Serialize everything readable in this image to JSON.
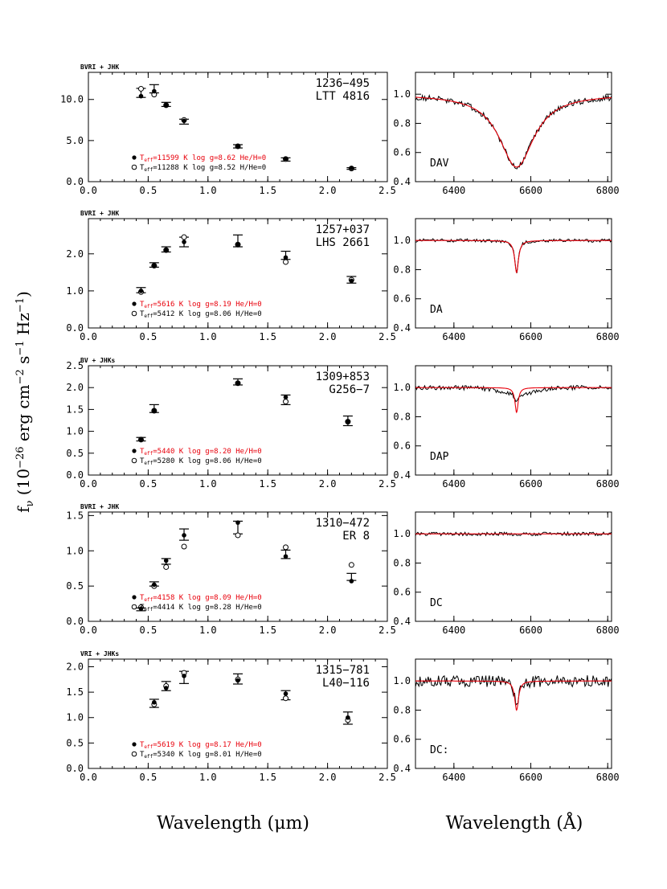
{
  "y_axis_label": "f_ν (10^-26 erg cm^-2 s^-1 Hz^-1)",
  "x_axis_label_sed": "Wavelength (μm)",
  "x_axis_label_spectrum": "Wavelength (Å)",
  "legend_labels": {
    "teff": "T",
    "teff_sub": "eff"
  },
  "colors": {
    "model_hydrogen": "#e8000b",
    "data": "#000000"
  },
  "chart_data": [
    {
      "type": "scatter",
      "photometry": "BVRI + JHK",
      "star_id": "1236−495",
      "star_name": "LTT 4816",
      "xlim": [
        0,
        2.5
      ],
      "ylim": [
        0,
        13.3
      ],
      "xticks": [
        "0.0",
        "0.5",
        "1.0",
        "1.5",
        "2.0",
        "2.5"
      ],
      "yticks": [
        "0.0",
        "5.0",
        "10.0"
      ],
      "ytick_values": [
        0,
        5,
        10
      ],
      "legend": [
        {
          "marker": "filled",
          "color": "#e8000b",
          "text": "=11599 K  log g=8.62  He/H=0"
        },
        {
          "marker": "open",
          "color": "#000000",
          "text": "=11288 K  log g=8.52  H/He=0"
        }
      ],
      "x": [
        0.44,
        0.55,
        0.65,
        0.8,
        1.25,
        1.65,
        2.2
      ],
      "observed": [
        10.8,
        11.3,
        9.4,
        7.3,
        4.3,
        2.7,
        1.6
      ],
      "errors": [
        0.55,
        0.5,
        0.25,
        0.3,
        0.2,
        0.2,
        0.1
      ],
      "model_filled": [
        10.4,
        11.0,
        9.3,
        7.4,
        4.3,
        2.8,
        1.65
      ],
      "model_open": [
        11.3,
        10.6,
        9.3,
        7.5,
        4.3,
        2.75,
        1.6
      ]
    },
    {
      "type": "scatter",
      "photometry": "BVRI + JHK",
      "star_id": "1257+037",
      "star_name": "LHS 2661",
      "xlim": [
        0,
        2.5
      ],
      "ylim": [
        0,
        2.95
      ],
      "xticks": [
        "0.0",
        "0.5",
        "1.0",
        "1.5",
        "2.0",
        "2.5"
      ],
      "yticks": [
        "0.0",
        "1.0",
        "2.0"
      ],
      "ytick_values": [
        0,
        1,
        2
      ],
      "legend": [
        {
          "marker": "filled",
          "color": "#e8000b",
          "text": "=5616 K  log g=8.19  He/H=0"
        },
        {
          "marker": "open",
          "color": "#000000",
          "text": "=5412 K  log g=8.06  H/He=0"
        }
      ],
      "x": [
        0.44,
        0.55,
        0.65,
        0.8,
        1.25,
        1.65,
        2.2
      ],
      "observed": [
        1.02,
        1.7,
        2.12,
        2.32,
        2.35,
        1.96,
        1.3
      ],
      "errors": [
        0.07,
        0.06,
        0.07,
        0.13,
        0.16,
        0.11,
        0.09
      ],
      "model_filled": [
        1.0,
        1.68,
        2.1,
        2.32,
        2.25,
        1.9,
        1.27
      ],
      "model_open": [
        0.97,
        1.68,
        2.1,
        2.45,
        2.25,
        1.78,
        1.3
      ]
    },
    {
      "type": "scatter",
      "photometry": "BV + JHKs",
      "star_id": "1309+853",
      "star_name": "G256−7",
      "xlim": [
        0,
        2.5
      ],
      "ylim": [
        0,
        2.5
      ],
      "xticks": [
        "0.0",
        "0.5",
        "1.0",
        "1.5",
        "2.0",
        "2.5"
      ],
      "yticks": [
        "0.0",
        "0.5",
        "1.0",
        "1.5",
        "2.0",
        "2.5"
      ],
      "ytick_values": [
        0,
        0.5,
        1.0,
        1.5,
        2.0,
        2.5
      ],
      "legend": [
        {
          "marker": "filled",
          "color": "#e8000b",
          "text": "=5440 K  log g=8.20  He/H=0"
        },
        {
          "marker": "open",
          "color": "#000000",
          "text": "=5280 K  log g=8.06  H/He=0"
        }
      ],
      "x": [
        0.44,
        0.55,
        1.25,
        1.65,
        2.17
      ],
      "observed": [
        0.82,
        1.52,
        2.13,
        1.72,
        1.24
      ],
      "errors": [
        0.04,
        0.09,
        0.07,
        0.11,
        0.11
      ],
      "model_filled": [
        0.81,
        1.47,
        2.1,
        1.78,
        1.22
      ],
      "model_open": [
        0.81,
        1.47,
        2.1,
        1.68,
        1.22
      ]
    },
    {
      "type": "scatter",
      "photometry": "BVRI + JHK",
      "star_id": "1310−472",
      "star_name": "ER 8",
      "xlim": [
        0,
        2.5
      ],
      "ylim": [
        0,
        1.55
      ],
      "xticks": [
        "0.0",
        "0.5",
        "1.0",
        "1.5",
        "2.0",
        "2.5"
      ],
      "yticks": [
        "0.0",
        "0.5",
        "1.0",
        "1.5"
      ],
      "ytick_values": [
        0,
        0.5,
        1.0,
        1.5
      ],
      "legend": [
        {
          "marker": "filled",
          "color": "#e8000b",
          "text": "=4158 K  log g=8.09  He/H=0"
        },
        {
          "marker": "open",
          "color": "#000000",
          "text": "=4414 K  log g=8.28  H/He=0"
        }
      ],
      "x": [
        0.44,
        0.55,
        0.65,
        0.8,
        1.25,
        1.65,
        2.2
      ],
      "observed": [
        0.17,
        0.53,
        0.85,
        1.23,
        1.33,
        0.95,
        0.63
      ],
      "errors": [
        0.02,
        0.03,
        0.04,
        0.08,
        0.09,
        0.06,
        0.05
      ],
      "model_filled": [
        0.18,
        0.52,
        0.86,
        1.22,
        1.4,
        0.92,
        0.57
      ],
      "model_open": [
        0.2,
        0.5,
        0.77,
        1.06,
        1.22,
        1.05,
        0.8
      ]
    },
    {
      "type": "scatter",
      "photometry": "VRI + JHKs",
      "star_id": "1315−781",
      "star_name": "L40−116",
      "xlim": [
        0,
        2.5
      ],
      "ylim": [
        0,
        2.15
      ],
      "xticks": [
        "0.0",
        "0.5",
        "1.0",
        "1.5",
        "2.0",
        "2.5"
      ],
      "yticks": [
        "0.0",
        "0.5",
        "1.0",
        "1.5",
        "2.0"
      ],
      "ytick_values": [
        0,
        0.5,
        1.0,
        1.5,
        2.0
      ],
      "legend": [
        {
          "marker": "filled",
          "color": "#e8000b",
          "text": "=5619 K  log g=8.17  He/H=0"
        },
        {
          "marker": "open",
          "color": "#000000",
          "text": "=5340 K  log g=8.01  H/He=0"
        }
      ],
      "x": [
        0.55,
        0.65,
        0.8,
        1.25,
        1.65,
        2.17
      ],
      "observed": [
        1.28,
        1.62,
        1.79,
        1.76,
        1.44,
        0.99
      ],
      "errors": [
        0.08,
        0.09,
        0.12,
        0.1,
        0.09,
        0.12
      ],
      "model_filled": [
        1.3,
        1.58,
        1.82,
        1.73,
        1.47,
        1.0
      ],
      "model_open": [
        1.26,
        1.62,
        1.88,
        1.75,
        1.38,
        0.95
      ]
    },
    {
      "type": "line",
      "spectral_type": "DAV",
      "xlim": [
        6300,
        6810
      ],
      "ylim": [
        0.4,
        1.15
      ],
      "xticks": [
        "6400",
        "6600",
        "6800"
      ],
      "xtick_values": [
        6400,
        6600,
        6800
      ],
      "yticks": [
        "0.4",
        "0.6",
        "0.8",
        "1.0"
      ],
      "ytick_values": [
        0.4,
        0.6,
        0.8,
        1.0
      ],
      "line_center": 6563,
      "line_depth": 0.5,
      "line_width": 55,
      "noise": 0.02
    },
    {
      "type": "line",
      "spectral_type": "DA",
      "xlim": [
        6300,
        6810
      ],
      "ylim": [
        0.4,
        1.15
      ],
      "xticks": [
        "6400",
        "6600",
        "6800"
      ],
      "xtick_values": [
        6400,
        6600,
        6800
      ],
      "yticks": [
        "0.4",
        "0.6",
        "0.8",
        "1.0"
      ],
      "ytick_values": [
        0.4,
        0.6,
        0.8,
        1.0
      ],
      "line_center": 6563,
      "line_depth": 0.22,
      "line_width": 6,
      "noise": 0.012
    },
    {
      "type": "line",
      "spectral_type": "DAP",
      "xlim": [
        6300,
        6810
      ],
      "ylim": [
        0.4,
        1.15
      ],
      "xticks": [
        "6400",
        "6600",
        "6800"
      ],
      "xtick_values": [
        6400,
        6600,
        6800
      ],
      "yticks": [
        "0.4",
        "0.6",
        "0.8",
        "1.0"
      ],
      "ytick_values": [
        0.4,
        0.6,
        0.8,
        1.0
      ],
      "line_center": 6563,
      "line_depth": 0.17,
      "line_width": 5,
      "noise": 0.015
    },
    {
      "type": "line",
      "spectral_type": "DC",
      "xlim": [
        6300,
        6810
      ],
      "ylim": [
        0.4,
        1.15
      ],
      "xticks": [
        "6400",
        "6600",
        "6800"
      ],
      "xtick_values": [
        6400,
        6600,
        6800
      ],
      "yticks": [
        "0.4",
        "0.6",
        "0.8",
        "1.0"
      ],
      "ytick_values": [
        0.4,
        0.6,
        0.8,
        1.0
      ],
      "line_center": 6563,
      "line_depth": 0.0,
      "line_width": 5,
      "noise": 0.012
    },
    {
      "type": "line",
      "spectral_type": "DC:",
      "xlim": [
        6300,
        6810
      ],
      "ylim": [
        0.4,
        1.15
      ],
      "xticks": [
        "6400",
        "6600",
        "6800"
      ],
      "xtick_values": [
        6400,
        6600,
        6800
      ],
      "yticks": [
        "0.4",
        "0.6",
        "0.8",
        "1.0"
      ],
      "ytick_values": [
        0.4,
        0.6,
        0.8,
        1.0
      ],
      "line_center": 6563,
      "line_depth": 0.2,
      "line_width": 6,
      "noise": 0.04
    }
  ]
}
